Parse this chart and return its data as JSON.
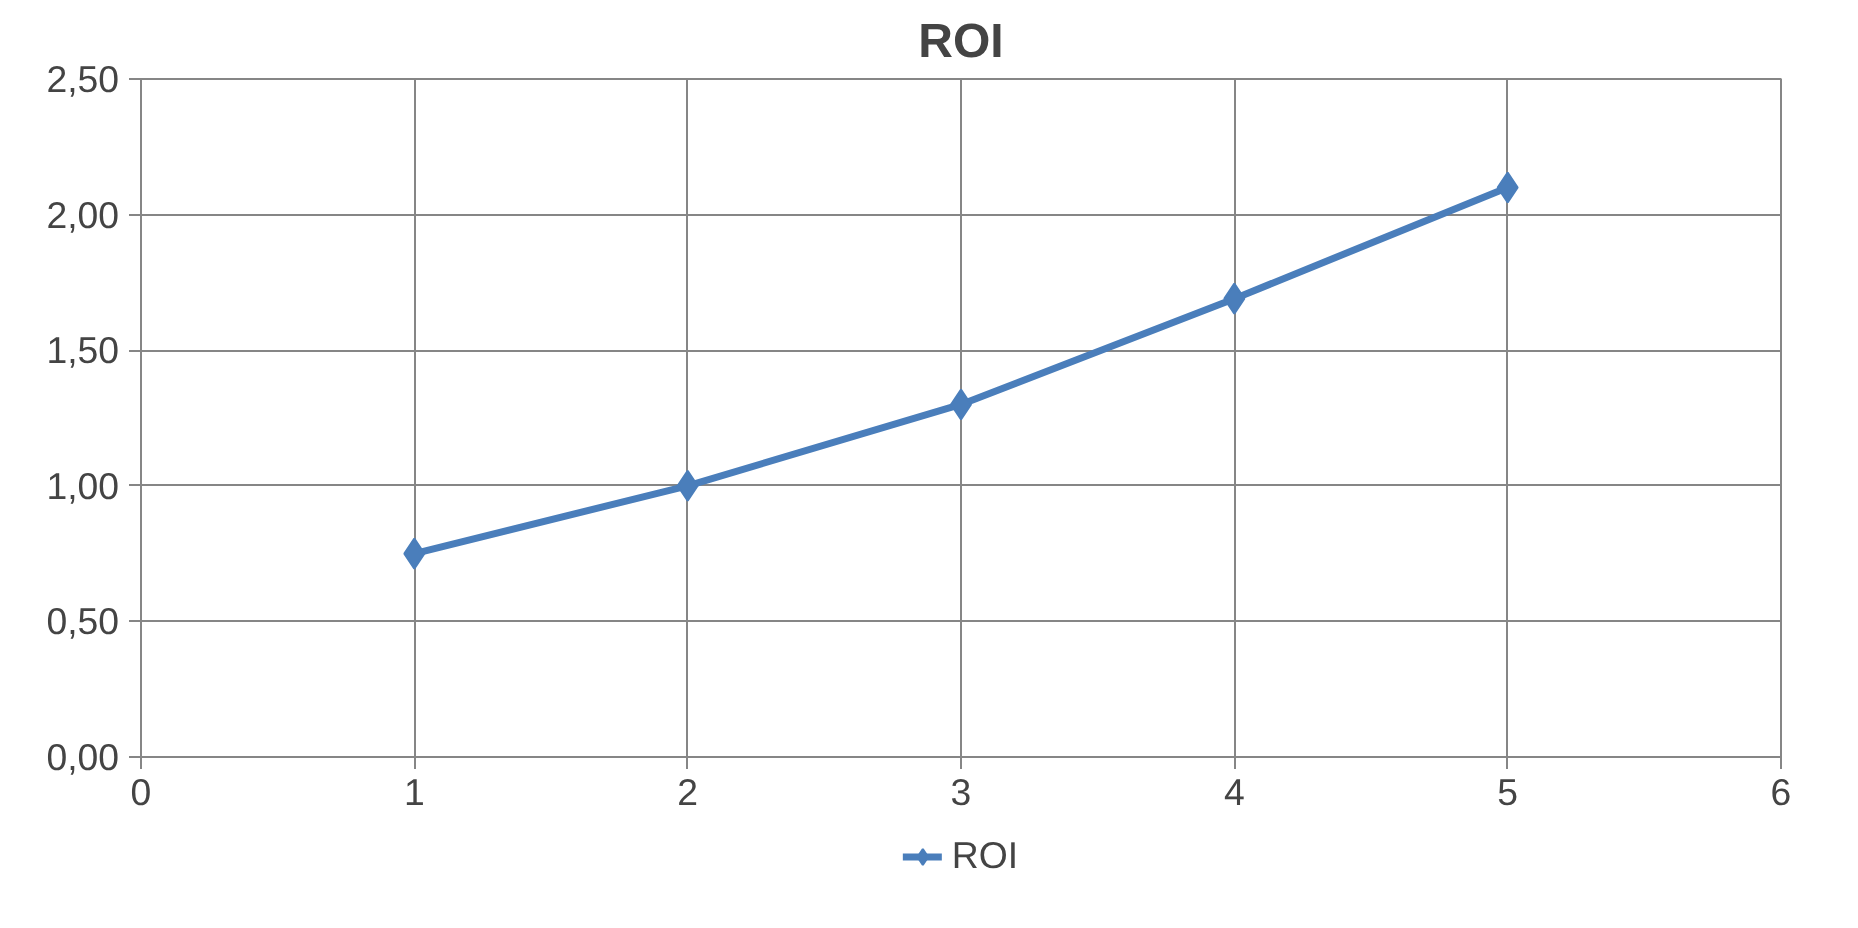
{
  "chart_data": {
    "type": "line",
    "title": "ROI",
    "x": [
      1,
      2,
      3,
      4,
      5
    ],
    "series": [
      {
        "name": "ROI",
        "color": "#4a7ebb",
        "values": [
          0.75,
          1.0,
          1.3,
          1.69,
          2.1
        ]
      }
    ],
    "xlim": [
      0,
      6
    ],
    "xticks": [
      0,
      1,
      2,
      3,
      4,
      5,
      6
    ],
    "ylim": [
      0,
      2.5
    ],
    "yticks": [
      {
        "value": 0,
        "label": "0,00"
      },
      {
        "value": 0.5,
        "label": "0,50"
      },
      {
        "value": 1.0,
        "label": "1,00"
      },
      {
        "value": 1.5,
        "label": "1,50"
      },
      {
        "value": 2.0,
        "label": "2,00"
      },
      {
        "value": 2.5,
        "label": "2,50"
      }
    ],
    "grid": true,
    "legend": "bottom",
    "marker": "diamond",
    "line_style": "solid"
  }
}
